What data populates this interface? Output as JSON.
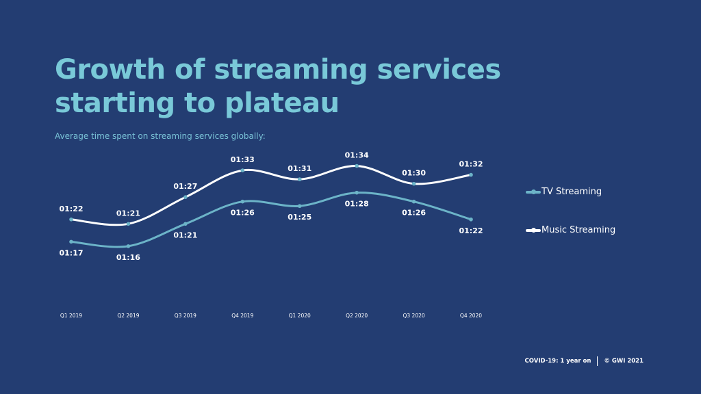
{
  "title": {
    "line1": "Growth of streaming services",
    "line2": "starting to plateau"
  },
  "subtitle": "Average time spent on streaming services globally:",
  "chart_data": {
    "type": "line",
    "categories": [
      "Q1 2019",
      "Q2 2019",
      "Q3 2019",
      "Q4 2019",
      "Q1 2020",
      "Q2 2020",
      "Q3 2020",
      "Q4 2020"
    ],
    "y_unit": "hh:mm",
    "ylim": [
      "01:10",
      "01:37"
    ],
    "grid": false,
    "legend_position": "right",
    "series": [
      {
        "name": "TV Streaming",
        "color": "#6cb4c8",
        "values": [
          "01:17",
          "01:16",
          "01:21",
          "01:26",
          "01:25",
          "01:28",
          "01:26",
          "01:22"
        ],
        "label_position": "below"
      },
      {
        "name": "Music Streaming",
        "color": "#ffffff",
        "values": [
          "01:22",
          "01:21",
          "01:27",
          "01:33",
          "01:31",
          "01:34",
          "01:30",
          "01:32"
        ],
        "label_position": "above"
      }
    ]
  },
  "legend": {
    "items": [
      {
        "label": "TV Streaming",
        "color": "#6cb4c8"
      },
      {
        "label": "Music Streaming",
        "color": "#ffffff"
      }
    ]
  },
  "footer": {
    "report": "COVID-19: 1 year on",
    "copyright": "© GWI 2021"
  }
}
